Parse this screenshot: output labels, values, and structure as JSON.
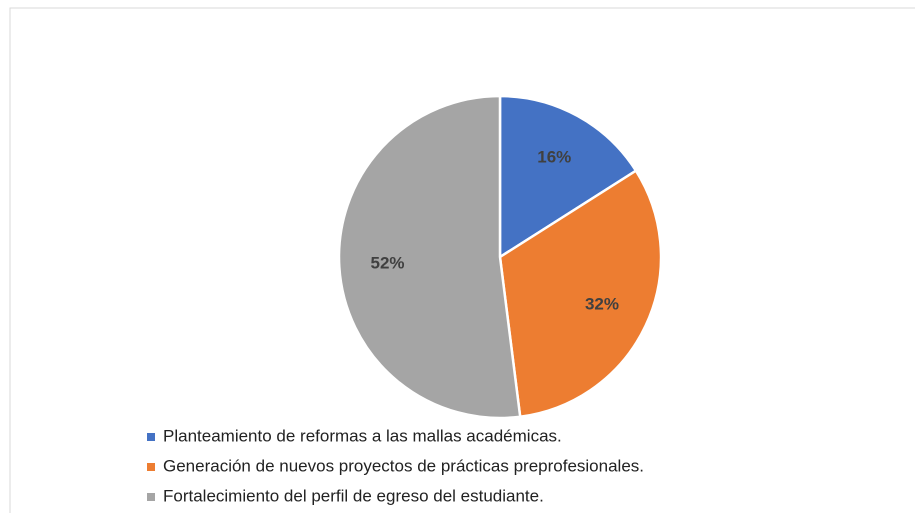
{
  "chart_data": {
    "type": "pie",
    "categories": [
      "Planteamiento de reformas a las mallas académicas.",
      "Generación de nuevos proyectos de prácticas preprofesionales.",
      "Fortalecimiento del perfil de egreso del estudiante."
    ],
    "values": [
      16,
      32,
      52
    ],
    "value_labels": [
      "16%",
      "32%",
      "52%"
    ],
    "colors": [
      "#4472c4",
      "#ed7d31",
      "#a5a5a5"
    ],
    "legend": "bottom"
  }
}
